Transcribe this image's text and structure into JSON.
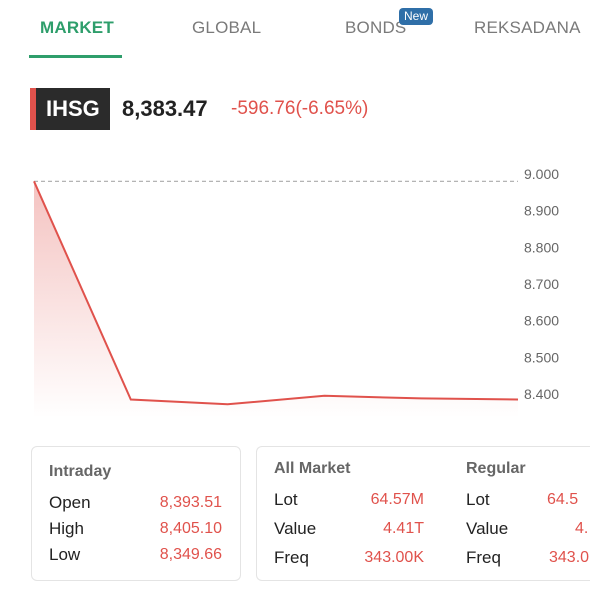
{
  "tabs": [
    {
      "label": "MARKET",
      "active": true
    },
    {
      "label": "GLOBAL",
      "active": false
    },
    {
      "label": "BONDS",
      "active": false,
      "badge": "New"
    },
    {
      "label": "REKSADANA",
      "active": false
    }
  ],
  "index": {
    "name": "IHSG",
    "value": "8,383.47",
    "change": "-596.76(-6.65%)"
  },
  "chart_data": {
    "type": "area",
    "title": "",
    "xlabel": "",
    "ylabel": "",
    "y_ticks": [
      "9.000",
      "8.900",
      "8.800",
      "8.700",
      "8.600",
      "8.500",
      "8.400"
    ],
    "ylim": [
      8400,
      9000
    ],
    "previous_close": 8980,
    "series": [
      {
        "values": [
          8980,
          8385,
          8372,
          8395,
          8388,
          8385
        ]
      }
    ],
    "colors": {
      "line": "#e0524c",
      "reference": "#aaaaaa"
    }
  },
  "intraday": {
    "title": "Intraday",
    "rows": [
      {
        "label": "Open",
        "value": "8,393.51"
      },
      {
        "label": "High",
        "value": "8,405.10"
      },
      {
        "label": "Low",
        "value": "8,349.66"
      }
    ]
  },
  "all_market": {
    "title": "All Market",
    "rows": [
      {
        "label": "Lot",
        "value": "64.57M"
      },
      {
        "label": "Value",
        "value": "4.41T"
      },
      {
        "label": "Freq",
        "value": "343.00K"
      }
    ]
  },
  "regular": {
    "title": "Regular",
    "rows": [
      {
        "label": "Lot",
        "value": "64.5"
      },
      {
        "label": "Value",
        "value": "4."
      },
      {
        "label": "Freq",
        "value": "343.0"
      }
    ]
  },
  "colors": {
    "accent": "#2e9e6b",
    "negative": "#e0524c",
    "badge": "#2f6fa8"
  }
}
